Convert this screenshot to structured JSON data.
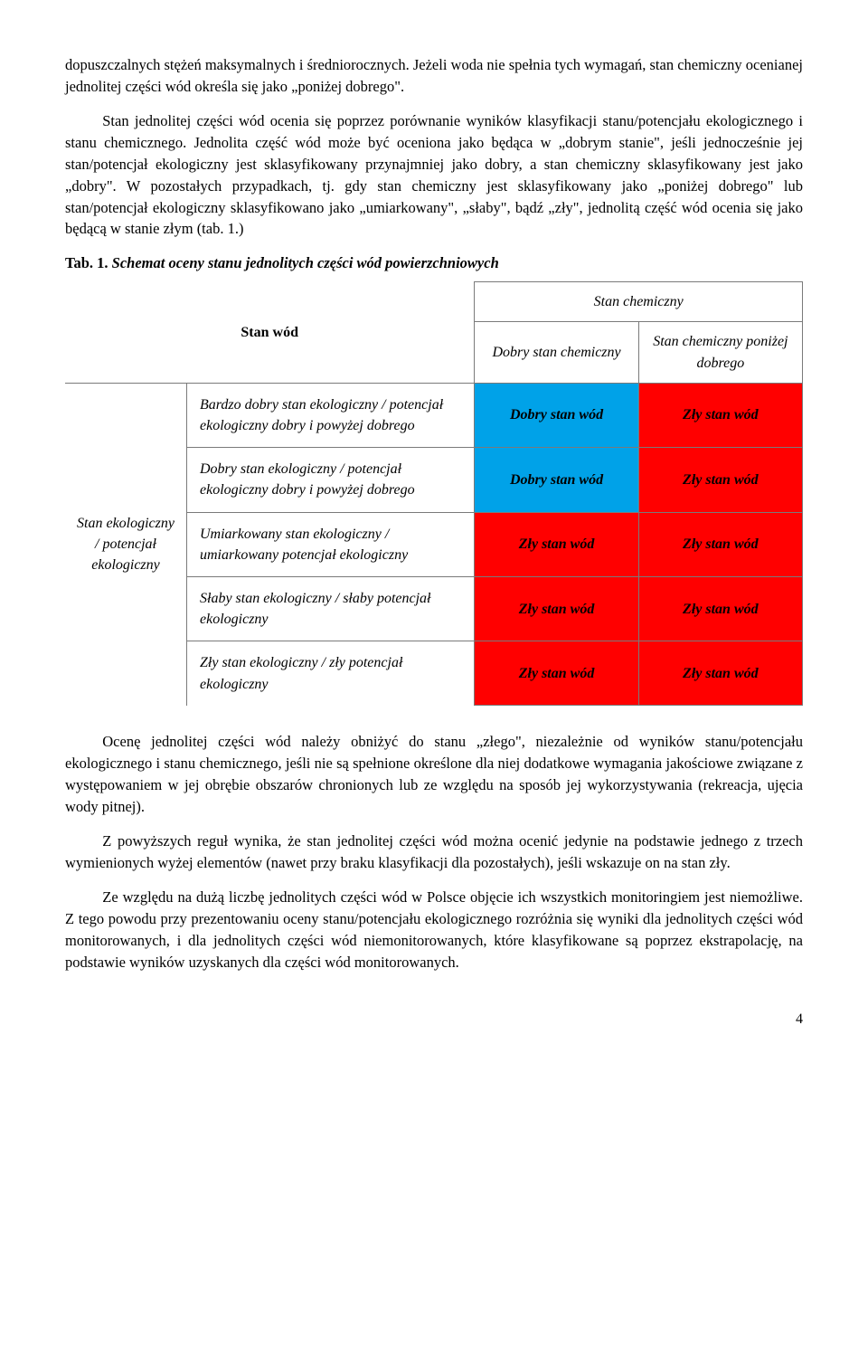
{
  "paragraphs": {
    "p1": "dopuszczalnych stężeń maksymalnych i średniorocznych. Jeżeli woda nie spełnia tych wymagań, stan chemiczny ocenianej jednolitej części wód określa się jako „poniżej dobrego\".",
    "p2": "Stan jednolitej części wód ocenia się poprzez porównanie wyników klasyfikacji stanu/potencjału ekologicznego i stanu chemicznego. Jednolita część wód może być oceniona jako będąca w „dobrym stanie\", jeśli jednocześnie jej stan/potencjał ekologiczny jest sklasyfikowany przynajmniej jako dobry, a stan chemiczny sklasyfikowany jest jako „dobry\". W pozostałych przypadkach, tj. gdy stan chemiczny jest sklasyfikowany jako „poniżej dobrego\" lub stan/potencjał ekologiczny sklasyfikowano jako „umiarkowany\", „słaby\", bądź „zły\", jednolitą część wód ocenia się jako będącą w stanie złym (tab. 1.)",
    "tabLabel": "Tab. 1. ",
    "tabTitle": "Schemat oceny stanu jednolitych części wód powierzchniowych",
    "p3": "Ocenę jednolitej części wód należy obniżyć do stanu „złego\", niezależnie od wyników stanu/potencjału ekologicznego i stanu chemicznego, jeśli nie są spełnione określone dla niej dodatkowe wymagania jakościowe związane z występowaniem w jej obrębie obszarów chronionych lub ze względu na sposób jej wykorzystywania (rekreacja, ujęcia wody pitnej).",
    "p4": "Z powyższych reguł wynika, że stan jednolitej części wód można ocenić jedynie na podstawie jednego z trzech wymienionych wyżej elementów (nawet przy braku klasyfikacji dla pozostałych), jeśli wskazuje on na stan zły.",
    "p5": "Ze względu na dużą liczbę jednolitych części wód w Polsce objęcie ich wszystkich monitoringiem jest niemożliwe. Z tego powodu przy prezentowaniu oceny stanu/potencjału ekologicznego rozróżnia się wyniki dla jednolitych części wód monitorowanych, i dla jednolitych części wód niemonitorowanych, które klasyfikowane są poprzez ekstrapolację, na podstawie wyników uzyskanych dla części wód monitorowanych."
  },
  "table": {
    "headers": {
      "stanWod": "Stan wód",
      "stanChemiczny": "Stan chemiczny",
      "dobryStanChem": "Dobry stan chemiczny",
      "stanChemPonizej": "Stan chemiczny poniżej dobrego"
    },
    "rowHeader": "Stan ekologiczny / potencjał ekologiczny",
    "rows": [
      {
        "desc": "Bardzo dobry stan ekologiczny / potencjał ekologiczny dobry i powyżej dobrego",
        "col1": "Dobry stan wód",
        "col1_color": "blue",
        "col2": "Zły stan wód",
        "col2_color": "red"
      },
      {
        "desc": "Dobry stan ekologiczny / potencjał ekologiczny dobry i powyżej dobrego",
        "col1": "Dobry stan wód",
        "col1_color": "blue",
        "col2": "Zły stan wód",
        "col2_color": "red"
      },
      {
        "desc": "Umiarkowany stan ekologiczny / umiarkowany potencjał ekologiczny",
        "col1": "Zły stan wód",
        "col1_color": "red",
        "col2": "Zły stan wód",
        "col2_color": "red"
      },
      {
        "desc": "Słaby stan ekologiczny / słaby potencjał ekologiczny",
        "col1": "Zły stan wód",
        "col1_color": "red",
        "col2": "Zły stan wód",
        "col2_color": "red"
      },
      {
        "desc": "Zły stan ekologiczny / zły potencjał ekologiczny",
        "col1": "Zły stan wód",
        "col1_color": "red",
        "col2": "Zły stan wód",
        "col2_color": "red"
      }
    ]
  },
  "pageNumber": "4"
}
